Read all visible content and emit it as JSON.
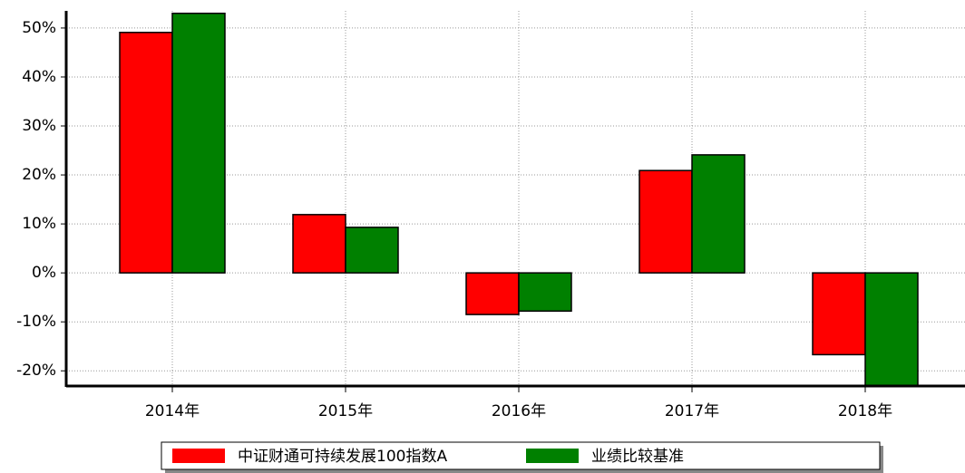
{
  "chart_data": {
    "type": "bar",
    "categories": [
      "2014年",
      "2015年",
      "2016年",
      "2017年",
      "2018年"
    ],
    "series": [
      {
        "name": "中证财通可持续发展100指数A",
        "color": "#ff0000",
        "values": [
          49.1,
          11.9,
          -8.5,
          20.9,
          -16.7
        ]
      },
      {
        "name": "业绩比较基准",
        "color": "#008000",
        "values": [
          53,
          9.3,
          -7.8,
          24.1,
          -23
        ]
      }
    ],
    "ylim": [
      -23.1,
      53.5
    ],
    "yticks": [
      {
        "value": -20,
        "label": "-20%"
      },
      {
        "value": -10,
        "label": "-10%"
      },
      {
        "value": 0,
        "label": "0%"
      },
      {
        "value": 10,
        "label": "10%"
      },
      {
        "value": 20,
        "label": "20%"
      },
      {
        "value": 30,
        "label": "30%"
      },
      {
        "value": 40,
        "label": "40%"
      },
      {
        "value": 50,
        "label": "50%"
      }
    ],
    "grid": true
  }
}
